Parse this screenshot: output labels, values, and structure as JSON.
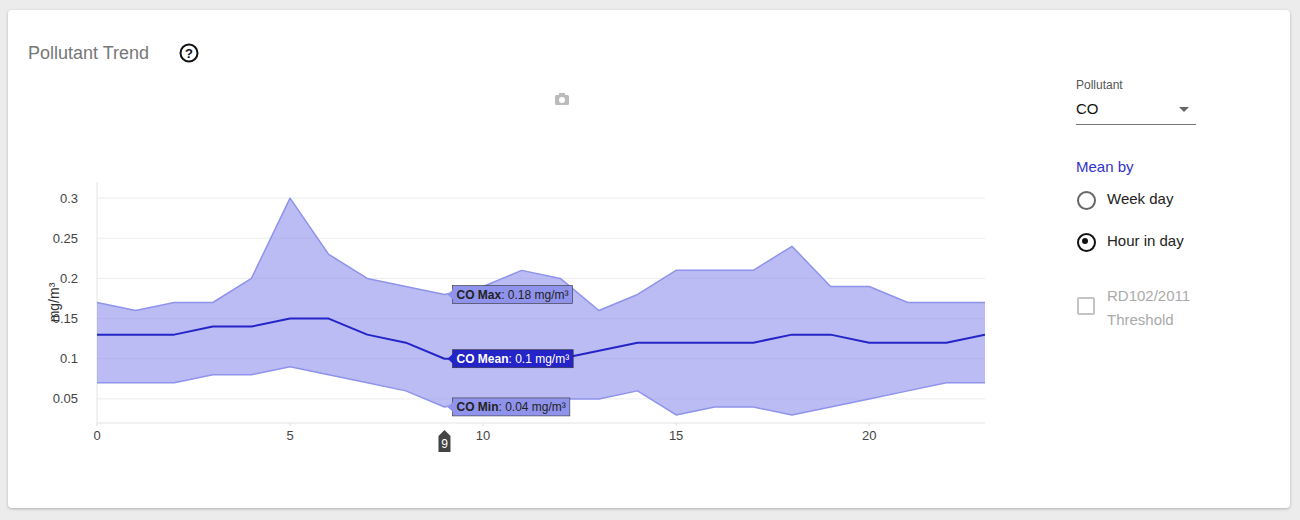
{
  "chart_data": {
    "type": "line",
    "title": "Pollutant Trend",
    "help_icon": "?",
    "ylabel": "mg/m³",
    "x": [
      0,
      1,
      2,
      3,
      4,
      5,
      6,
      7,
      8,
      9,
      10,
      11,
      12,
      13,
      14,
      15,
      16,
      17,
      18,
      19,
      20,
      21,
      22,
      23
    ],
    "xlim": [
      0,
      23
    ],
    "xticks": [
      0,
      5,
      10,
      15,
      20
    ],
    "ylim": [
      0.02,
      0.32
    ],
    "yticks": [
      0.05,
      0.1,
      0.15,
      0.2,
      0.25,
      0.3
    ],
    "grid": true,
    "series": [
      {
        "name": "CO Max",
        "type": "area",
        "color": "#8f93ec",
        "values": [
          0.17,
          0.16,
          0.17,
          0.17,
          0.2,
          0.3,
          0.23,
          0.2,
          0.19,
          0.18,
          0.19,
          0.21,
          0.2,
          0.16,
          0.18,
          0.21,
          0.21,
          0.21,
          0.24,
          0.19,
          0.19,
          0.17,
          0.17,
          0.17
        ]
      },
      {
        "name": "CO Mean",
        "type": "line",
        "color": "#2424c8",
        "values": [
          0.13,
          0.13,
          0.13,
          0.14,
          0.14,
          0.15,
          0.15,
          0.13,
          0.12,
          0.1,
          0.1,
          0.1,
          0.1,
          0.11,
          0.12,
          0.12,
          0.12,
          0.12,
          0.13,
          0.13,
          0.12,
          0.12,
          0.12,
          0.13
        ]
      },
      {
        "name": "CO Min",
        "type": "area",
        "color": "#8f93ec",
        "values": [
          0.07,
          0.07,
          0.07,
          0.08,
          0.08,
          0.09,
          0.08,
          0.07,
          0.06,
          0.04,
          0.05,
          0.05,
          0.05,
          0.05,
          0.06,
          0.03,
          0.04,
          0.04,
          0.03,
          0.04,
          0.05,
          0.06,
          0.07,
          0.07
        ]
      }
    ],
    "hover": {
      "x": 9,
      "texts": [
        ": 0.18 mg/m³",
        ": 0.1 mg/m³",
        ": 0.04 mg/m³"
      ]
    }
  },
  "controls": {
    "pollutant_label": "Pollutant",
    "pollutant": "CO",
    "mean_by_label": "Mean by",
    "options": [
      "Week day",
      "Hour in day"
    ],
    "selected": "Hour in day",
    "threshold_label": "RD102/2011 Threshold",
    "threshold_checked": false,
    "threshold_enabled": false
  }
}
